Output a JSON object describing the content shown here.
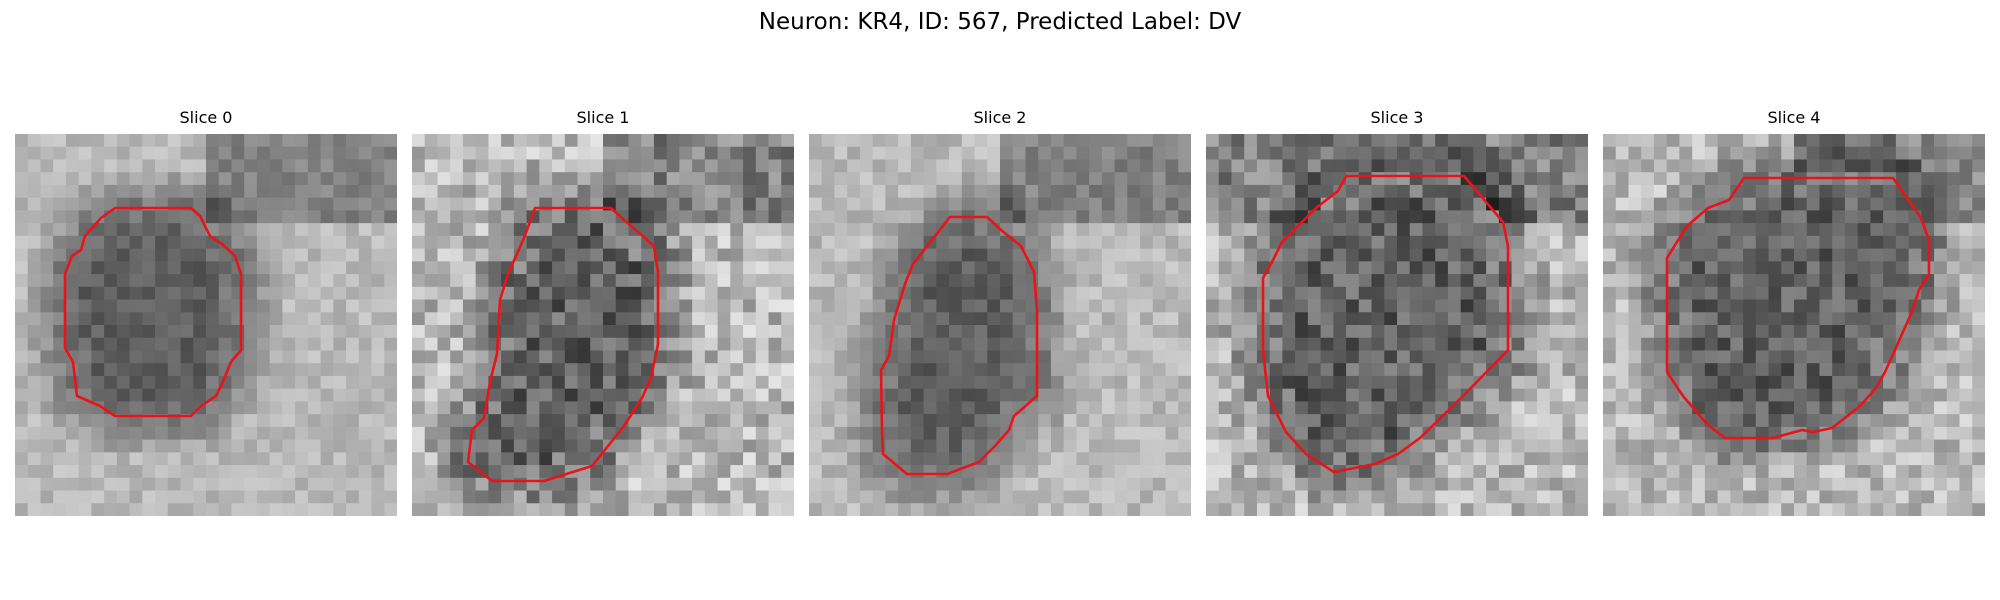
{
  "figure": {
    "title": "Neuron: KR4, ID: 567, Predicted Label: DV",
    "contour_color": "#e8141a",
    "colormap": "grayscale",
    "image_grid": 30
  },
  "panels": [
    {
      "title": "Slice 0",
      "image_content": "grayscale microscopy patch with red contour outlining neuron soma"
    },
    {
      "title": "Slice 1",
      "image_content": "grayscale microscopy patch with red contour outlining neuron soma"
    },
    {
      "title": "Slice 2",
      "image_content": "grayscale microscopy patch with red contour outlining neuron soma"
    },
    {
      "title": "Slice 3",
      "image_content": "grayscale microscopy patch with red contour outlining neuron soma"
    },
    {
      "title": "Slice 4",
      "image_content": "grayscale microscopy patch with red contour outlining neuron soma"
    }
  ]
}
